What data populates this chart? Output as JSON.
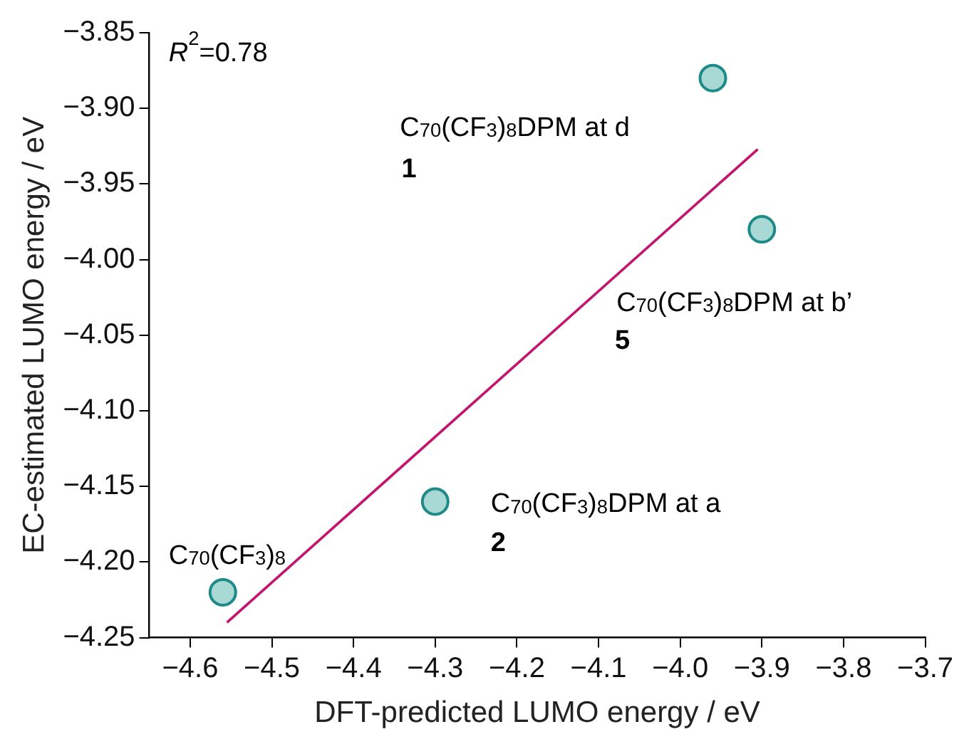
{
  "chart_data": {
    "type": "scatter",
    "xlabel": "DFT-predicted LUMO energy / eV",
    "ylabel": "EC-estimated LUMO energy / eV",
    "series": [
      {
        "color": "#a9d9d5",
        "marker": "circle",
        "x": [
          -4.56,
          -4.3,
          -3.96,
          -3.9
        ],
        "values": [
          -4.22,
          -4.16,
          -3.88,
          -3.98
        ]
      },
      {
        "type": "line",
        "color": "#c2166e",
        "x": [
          -4.555,
          -3.905
        ],
        "values": [
          -4.24,
          -3.927
        ]
      }
    ],
    "xlim": [
      -4.65,
      -3.7
    ],
    "xticks": [
      {
        "value": -4.6,
        "label": "−4.6"
      },
      {
        "value": -4.5,
        "label": "−4.5"
      },
      {
        "value": -4.4,
        "label": "−4.4"
      },
      {
        "value": -4.3,
        "label": "−4.3"
      },
      {
        "value": -4.2,
        "label": "−4.2"
      },
      {
        "value": -4.1,
        "label": "−4.1"
      },
      {
        "value": -4.0,
        "label": "−4.0"
      },
      {
        "value": -3.9,
        "label": "−3.9"
      },
      {
        "value": -3.8,
        "label": "−3.8"
      },
      {
        "value": -3.7,
        "label": "−3.7"
      }
    ],
    "ylim": [
      -4.25,
      -3.85
    ],
    "yticks": [
      {
        "value": -4.25,
        "label": "−4.25"
      },
      {
        "value": -4.2,
        "label": "−4.20"
      },
      {
        "value": -4.15,
        "label": "−4.15"
      },
      {
        "value": -4.1,
        "label": "−4.10"
      },
      {
        "value": -4.05,
        "label": "−4.05"
      },
      {
        "value": -4.0,
        "label": "−4.00"
      },
      {
        "value": -3.95,
        "label": "−3.95"
      },
      {
        "value": -3.9,
        "label": "−3.90"
      },
      {
        "value": -3.85,
        "label": "−3.85"
      }
    ],
    "grid": false,
    "legend": false,
    "annotations": [
      "R$^{2}$=0.78",
      "C$_{70}$(CF$_{3}$)$_{8}$DPM at d",
      "1",
      "C$_{70}$(CF$_{3}$)$_{8}$DPM at b’",
      "5",
      "C$_{70}$(CF$_{3}$)$_{8}$DPM at a",
      "2",
      "C$_{70}$(CF$_{3}$)$_{8}$"
    ]
  }
}
